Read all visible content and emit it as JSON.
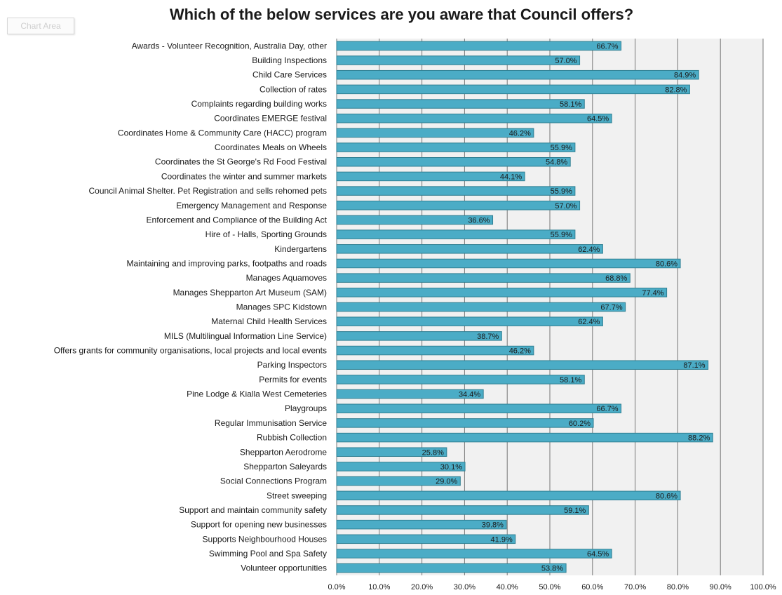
{
  "chart_area_tag": "Chart Area",
  "colors": {
    "bar": "#4bacc6",
    "bar_border": "#2f7f92",
    "plot_bg": "#f1f1f1",
    "grid": "#777777"
  },
  "chart_data": {
    "type": "bar",
    "orientation": "horizontal",
    "title": "Which of the below services  are you aware that Council offers?",
    "xlabel": "",
    "ylabel": "",
    "xlim": [
      0,
      100
    ],
    "grid": true,
    "categories": [
      "Awards - Volunteer Recognition, Australia Day, other",
      "Building Inspections",
      "Child Care Services",
      "Collection of rates",
      "Complaints regarding building works",
      "Coordinates EMERGE festival",
      "Coordinates Home & Community Care (HACC) program",
      "Coordinates Meals on Wheels",
      "Coordinates the St George's Rd Food Festival",
      "Coordinates the winter and summer markets",
      "Council Animal Shelter. Pet Registration and sells rehomed pets",
      "Emergency Management and Response",
      "Enforcement and Compliance of the Building Act",
      "Hire of - Halls, Sporting Grounds",
      "Kindergartens",
      "Maintaining and improving parks, footpaths and roads",
      "Manages Aquamoves",
      "Manages Shepparton Art Museum (SAM)",
      "Manages SPC Kidstown",
      "Maternal Child Health Services",
      "MILS (Multilingual Information Line Service)",
      "Offers grants for community organisations, local projects and local events",
      "Parking Inspectors",
      "Permits for events",
      "Pine Lodge & Kialla West Cemeteries",
      "Playgroups",
      "Regular Immunisation Service",
      "Rubbish Collection",
      "Shepparton Aerodrome",
      "Shepparton Saleyards",
      "Social Connections Program",
      "Street sweeping",
      "Support and maintain community safety",
      "Support for opening new businesses",
      "Supports Neighbourhood Houses",
      "Swimming Pool and Spa Safety",
      "Volunteer opportunities"
    ],
    "values": [
      66.7,
      57.0,
      84.9,
      82.8,
      58.1,
      64.5,
      46.2,
      55.9,
      54.8,
      44.1,
      55.9,
      57.0,
      36.6,
      55.9,
      62.4,
      80.6,
      68.8,
      77.4,
      67.7,
      62.4,
      38.7,
      46.2,
      87.1,
      58.1,
      34.4,
      66.7,
      60.2,
      88.2,
      25.8,
      30.1,
      29.0,
      80.6,
      59.1,
      39.8,
      41.9,
      64.5,
      53.8
    ],
    "data_labels": [
      "66.7%",
      "57.0%",
      "84.9%",
      "82.8%",
      "58.1%",
      "64.5%",
      "46.2%",
      "55.9%",
      "54.8%",
      "44.1%",
      "55.9%",
      "57.0%",
      "36.6%",
      "55.9%",
      "62.4%",
      "80.6%",
      "68.8%",
      "77.4%",
      "67.7%",
      "62.4%",
      "38.7%",
      "46.2%",
      "87.1%",
      "58.1%",
      "34.4%",
      "66.7%",
      "60.2%",
      "88.2%",
      "25.8%",
      "30.1%",
      "29.0%",
      "80.6%",
      "59.1%",
      "39.8%",
      "41.9%",
      "64.5%",
      "53.8%"
    ],
    "x_ticks": [
      0,
      10,
      20,
      30,
      40,
      50,
      60,
      70,
      80,
      90,
      100
    ],
    "x_tick_labels": [
      "0.0%",
      "10.0%",
      "20.0%",
      "30.0%",
      "40.0%",
      "50.0%",
      "60.0%",
      "70.0%",
      "80.0%",
      "90.0%",
      "100.0%"
    ]
  }
}
